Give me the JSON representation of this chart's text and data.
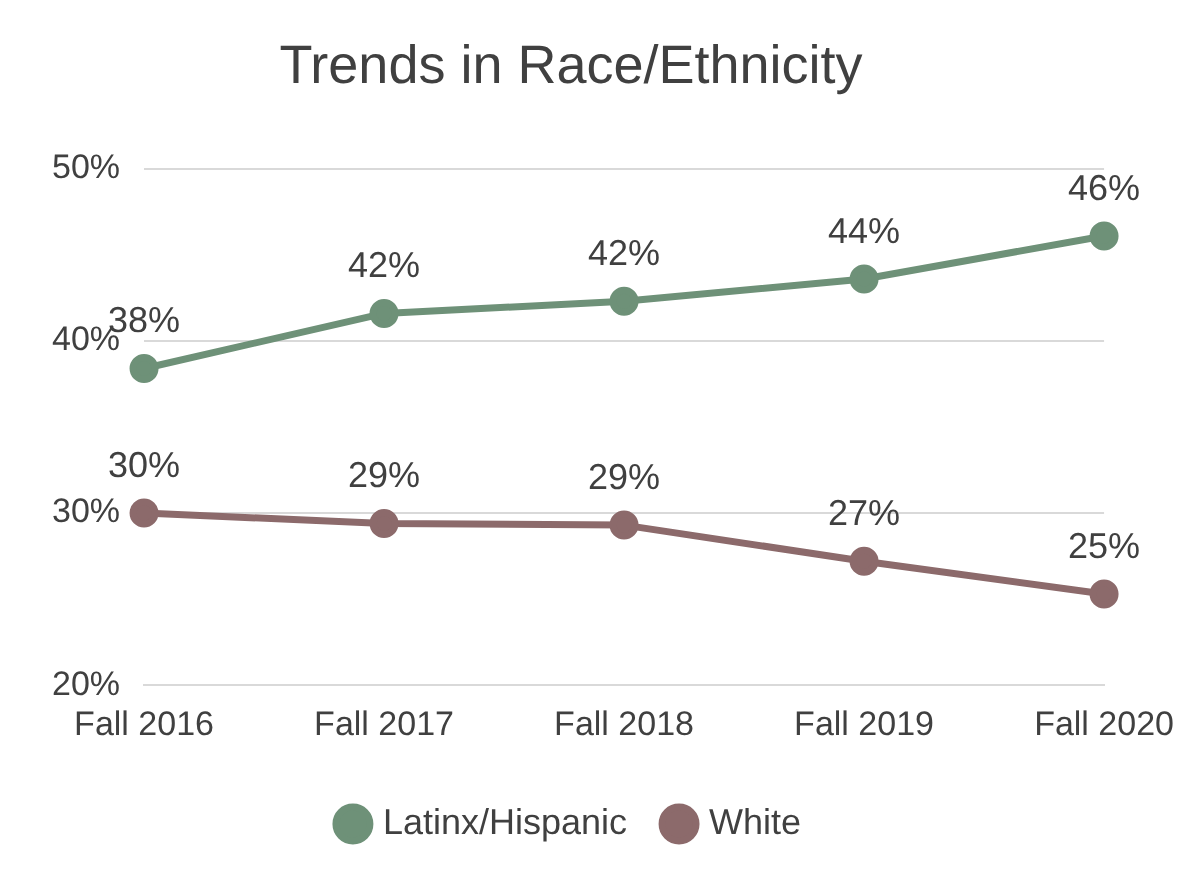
{
  "chart_data": {
    "type": "line",
    "title": "Trends in Race/Ethnicity",
    "categories": [
      "Fall 2016",
      "Fall 2017",
      "Fall 2018",
      "Fall 2019",
      "Fall 2020"
    ],
    "series": [
      {
        "name": "Latinx/Hispanic",
        "color": "#6e9178",
        "values": [
          38.4,
          41.6,
          42.3,
          43.6,
          46.1
        ],
        "value_labels": [
          "38%",
          "42%",
          "42%",
          "44%",
          "46%"
        ]
      },
      {
        "name": "White",
        "color": "#8c6a6b",
        "values": [
          30.0,
          29.4,
          29.3,
          27.2,
          25.3
        ],
        "value_labels": [
          "30%",
          "29%",
          "29%",
          "27%",
          "25%"
        ]
      }
    ],
    "ylim": [
      20,
      50
    ],
    "yticks": [
      {
        "value": 20,
        "label": "20%"
      },
      {
        "value": 30,
        "label": "30%"
      },
      {
        "value": 40,
        "label": "40%"
      },
      {
        "value": 50,
        "label": "50%"
      }
    ],
    "grid": "y",
    "legend": "bottom",
    "marker": "circle",
    "line_style": "solid"
  }
}
